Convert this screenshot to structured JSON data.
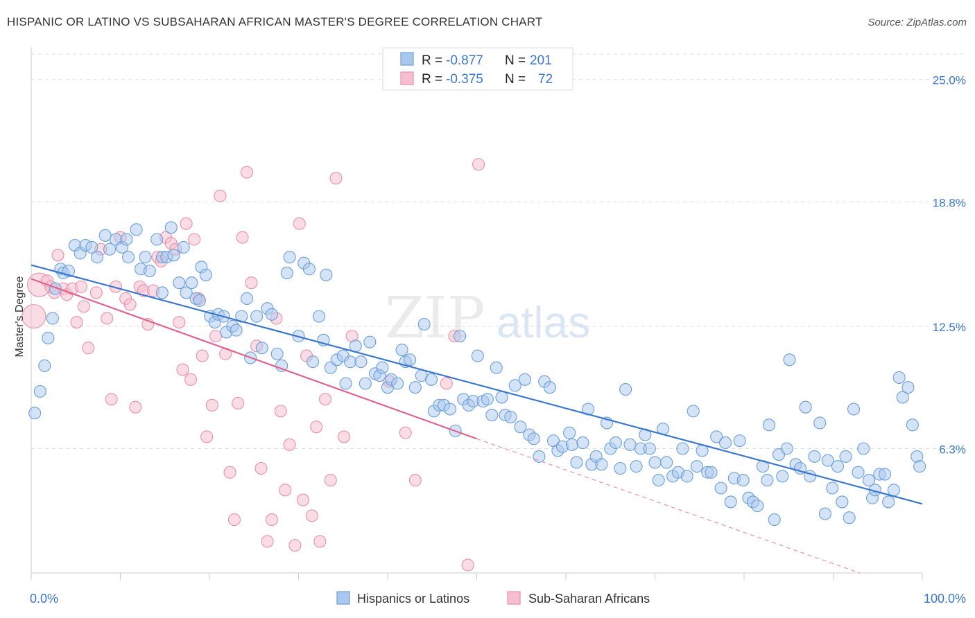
{
  "header": {
    "title": "HISPANIC OR LATINO VS SUBSAHARAN AFRICAN MASTER'S DEGREE CORRELATION CHART",
    "source": "Source: ZipAtlas.com"
  },
  "colors": {
    "blue": "#6a9fd8",
    "blue_fill": "#a9c8ee",
    "blue_line": "#3a78d0",
    "pink": "#e890ab",
    "pink_fill": "#f5bfd0",
    "pink_line": "#e0648f",
    "tick_label": "#3a78d0",
    "grid": "#dddddd"
  },
  "legend_top": {
    "rows": [
      {
        "r_label": "R =",
        "r_value": "-0.877",
        "n_label": "N =",
        "n_value": "201"
      },
      {
        "r_label": "R =",
        "r_value": "-0.375",
        "n_label": "N =",
        "n_value": "72"
      }
    ]
  },
  "watermark": {
    "zip": "ZIP",
    "atlas": "atlas"
  },
  "chart_data": {
    "type": "scatter",
    "title": "HISPANIC OR LATINO VS SUBSAHARAN AFRICAN MASTER'S DEGREE CORRELATION CHART",
    "xlabel": "",
    "ylabel": "Master's Degree",
    "xlim": [
      0,
      100
    ],
    "ylim": [
      0,
      26.5
    ],
    "x_tick_labels": [
      "0.0%",
      "100.0%"
    ],
    "y_ticks": [
      6.3,
      12.5,
      18.8,
      25.0
    ],
    "y_tick_labels": [
      "6.3%",
      "12.5%",
      "18.8%",
      "25.0%"
    ],
    "grid": true,
    "legend_position": "bottom",
    "series": [
      {
        "name": "Hispanics or Latinos",
        "r": -0.877,
        "n": 201,
        "trend": {
          "x0": 0,
          "y0": 15.6,
          "x1": 100,
          "y1": 3.5
        },
        "points": [
          [
            0.4,
            8.1
          ],
          [
            1.0,
            9.2
          ],
          [
            1.5,
            10.5
          ],
          [
            1.9,
            11.9
          ],
          [
            2.4,
            12.9
          ],
          [
            2.7,
            14.4
          ],
          [
            3.3,
            15.4
          ],
          [
            3.6,
            15.2
          ],
          [
            4.2,
            15.3
          ],
          [
            4.9,
            16.6
          ],
          [
            5.5,
            16.2
          ],
          [
            6.1,
            16.6
          ],
          [
            6.8,
            16.5
          ],
          [
            7.4,
            16.0
          ],
          [
            8.3,
            17.1
          ],
          [
            8.8,
            16.4
          ],
          [
            9.5,
            16.9
          ],
          [
            10.2,
            16.5
          ],
          [
            10.7,
            16.9
          ],
          [
            10.9,
            16.0
          ],
          [
            11.8,
            17.4
          ],
          [
            12.3,
            15.4
          ],
          [
            12.8,
            16.0
          ],
          [
            13.3,
            15.3
          ],
          [
            14.1,
            16.9
          ],
          [
            14.7,
            16.0
          ],
          [
            14.7,
            14.2
          ],
          [
            15.2,
            16.0
          ],
          [
            15.7,
            17.5
          ],
          [
            16.0,
            16.1
          ],
          [
            16.6,
            14.7
          ],
          [
            17.1,
            16.5
          ],
          [
            17.4,
            14.2
          ],
          [
            18.0,
            14.7
          ],
          [
            18.5,
            13.9
          ],
          [
            18.9,
            13.8
          ],
          [
            19.1,
            15.5
          ],
          [
            19.6,
            15.1
          ],
          [
            20.1,
            13.0
          ],
          [
            20.6,
            12.7
          ],
          [
            21.0,
            13.1
          ],
          [
            21.6,
            13.0
          ],
          [
            21.9,
            12.2
          ],
          [
            22.6,
            12.5
          ],
          [
            23.0,
            12.3
          ],
          [
            23.6,
            13.0
          ],
          [
            24.2,
            13.9
          ],
          [
            24.6,
            10.9
          ],
          [
            25.3,
            13.0
          ],
          [
            25.9,
            11.4
          ],
          [
            26.5,
            13.4
          ],
          [
            27.0,
            13.1
          ],
          [
            27.6,
            11.1
          ],
          [
            28.1,
            10.5
          ],
          [
            28.7,
            15.2
          ],
          [
            29.0,
            16.0
          ],
          [
            30.0,
            12.0
          ],
          [
            30.6,
            15.7
          ],
          [
            31.2,
            15.4
          ],
          [
            31.6,
            10.7
          ],
          [
            32.3,
            13.0
          ],
          [
            32.8,
            11.8
          ],
          [
            33.1,
            15.1
          ],
          [
            33.6,
            10.4
          ],
          [
            34.3,
            10.8
          ],
          [
            35.0,
            11.0
          ],
          [
            35.3,
            9.6
          ],
          [
            35.8,
            10.7
          ],
          [
            36.4,
            11.5
          ],
          [
            37.0,
            10.7
          ],
          [
            37.5,
            9.6
          ],
          [
            38.0,
            11.7
          ],
          [
            38.6,
            10.1
          ],
          [
            39.1,
            10.0
          ],
          [
            39.4,
            10.4
          ],
          [
            40.0,
            9.4
          ],
          [
            40.4,
            9.8
          ],
          [
            41.1,
            9.6
          ],
          [
            41.6,
            11.3
          ],
          [
            42.0,
            10.7
          ],
          [
            42.5,
            10.8
          ],
          [
            43.1,
            9.4
          ],
          [
            43.8,
            10.0
          ],
          [
            44.1,
            12.6
          ],
          [
            44.9,
            9.8
          ],
          [
            45.2,
            8.2
          ],
          [
            45.8,
            8.5
          ],
          [
            46.3,
            8.5
          ],
          [
            47.0,
            8.3
          ],
          [
            47.6,
            7.2
          ],
          [
            48.1,
            12.0
          ],
          [
            48.5,
            8.8
          ],
          [
            49.1,
            8.5
          ],
          [
            49.6,
            8.7
          ],
          [
            50.1,
            11.0
          ],
          [
            50.7,
            8.7
          ],
          [
            51.2,
            8.8
          ],
          [
            51.7,
            8.0
          ],
          [
            52.2,
            10.4
          ],
          [
            52.8,
            8.9
          ],
          [
            53.2,
            8.0
          ],
          [
            53.8,
            7.9
          ],
          [
            54.3,
            9.5
          ],
          [
            54.9,
            7.4
          ],
          [
            55.4,
            9.8
          ],
          [
            55.9,
            7.0
          ],
          [
            56.4,
            6.8
          ],
          [
            57.0,
            5.9
          ],
          [
            57.6,
            9.7
          ],
          [
            58.2,
            9.4
          ],
          [
            58.6,
            6.7
          ],
          [
            59.1,
            6.2
          ],
          [
            59.6,
            6.4
          ],
          [
            60.4,
            7.1
          ],
          [
            60.7,
            6.5
          ],
          [
            61.2,
            5.6
          ],
          [
            61.9,
            6.6
          ],
          [
            62.5,
            8.3
          ],
          [
            62.9,
            5.5
          ],
          [
            63.4,
            5.9
          ],
          [
            64.0,
            5.5
          ],
          [
            64.6,
            7.6
          ],
          [
            65.0,
            6.3
          ],
          [
            65.6,
            6.6
          ],
          [
            66.1,
            5.3
          ],
          [
            66.7,
            9.3
          ],
          [
            67.2,
            6.5
          ],
          [
            67.9,
            5.4
          ],
          [
            68.4,
            6.3
          ],
          [
            68.9,
            7.0
          ],
          [
            69.4,
            6.3
          ],
          [
            70.0,
            5.6
          ],
          [
            70.4,
            4.7
          ],
          [
            70.9,
            7.3
          ],
          [
            71.3,
            5.6
          ],
          [
            72.0,
            4.9
          ],
          [
            72.6,
            5.1
          ],
          [
            73.1,
            6.3
          ],
          [
            73.6,
            4.9
          ],
          [
            74.3,
            8.2
          ],
          [
            74.7,
            5.4
          ],
          [
            75.3,
            6.2
          ],
          [
            75.9,
            5.1
          ],
          [
            76.3,
            5.1
          ],
          [
            76.9,
            6.9
          ],
          [
            77.4,
            4.3
          ],
          [
            77.9,
            6.6
          ],
          [
            78.5,
            3.6
          ],
          [
            78.9,
            4.8
          ],
          [
            79.5,
            6.7
          ],
          [
            79.9,
            4.7
          ],
          [
            80.5,
            3.8
          ],
          [
            81.0,
            3.6
          ],
          [
            81.5,
            3.4
          ],
          [
            82.1,
            5.4
          ],
          [
            82.6,
            4.7
          ],
          [
            82.8,
            7.5
          ],
          [
            83.4,
            2.7
          ],
          [
            83.9,
            6.0
          ],
          [
            84.3,
            4.9
          ],
          [
            84.8,
            6.3
          ],
          [
            85.1,
            10.8
          ],
          [
            85.8,
            5.5
          ],
          [
            86.3,
            5.3
          ],
          [
            86.9,
            8.4
          ],
          [
            87.4,
            4.9
          ],
          [
            87.9,
            5.9
          ],
          [
            88.5,
            7.6
          ],
          [
            89.1,
            3.0
          ],
          [
            89.4,
            5.7
          ],
          [
            89.9,
            4.3
          ],
          [
            90.5,
            5.4
          ],
          [
            91.0,
            3.6
          ],
          [
            91.4,
            5.9
          ],
          [
            91.8,
            2.8
          ],
          [
            92.3,
            8.3
          ],
          [
            92.8,
            5.1
          ],
          [
            93.4,
            6.3
          ],
          [
            94.0,
            4.7
          ],
          [
            94.4,
            3.8
          ],
          [
            94.7,
            4.2
          ],
          [
            95.2,
            5.0
          ],
          [
            95.8,
            5.0
          ],
          [
            96.2,
            3.6
          ],
          [
            96.8,
            4.2
          ],
          [
            97.4,
            9.9
          ],
          [
            97.8,
            8.9
          ],
          [
            98.4,
            9.4
          ],
          [
            98.9,
            7.5
          ],
          [
            99.4,
            5.9
          ],
          [
            99.7,
            5.4
          ]
        ]
      },
      {
        "name": "Sub-Saharan Africans",
        "r": -0.375,
        "n": 72,
        "trend": {
          "x0": 0,
          "y0": 14.9,
          "x1": 50,
          "y1": 6.8
        },
        "trend_dashed": {
          "x0": 50,
          "y0": 6.8,
          "x1": 93,
          "y1": 0.0
        },
        "points": [
          [
            0.3,
            13.0,
            "L"
          ],
          [
            0.9,
            14.6,
            "L"
          ],
          [
            1.8,
            14.8
          ],
          [
            2.2,
            14.5
          ],
          [
            2.6,
            14.2
          ],
          [
            3.0,
            16.1
          ],
          [
            3.6,
            14.4
          ],
          [
            4.0,
            14.1
          ],
          [
            4.6,
            14.4
          ],
          [
            5.1,
            12.7
          ],
          [
            5.6,
            14.5
          ],
          [
            5.9,
            13.5
          ],
          [
            6.4,
            11.4
          ],
          [
            7.3,
            14.2
          ],
          [
            7.8,
            16.4
          ],
          [
            8.5,
            12.9
          ],
          [
            9.0,
            8.8
          ],
          [
            9.5,
            14.5
          ],
          [
            10.0,
            17.0
          ],
          [
            10.6,
            13.9
          ],
          [
            11.1,
            13.6
          ],
          [
            11.7,
            8.4
          ],
          [
            12.2,
            14.5
          ],
          [
            12.6,
            14.3
          ],
          [
            13.1,
            12.6
          ],
          [
            13.7,
            14.3
          ],
          [
            14.2,
            16.0
          ],
          [
            14.6,
            15.8
          ],
          [
            15.1,
            17.0
          ],
          [
            15.7,
            16.7
          ],
          [
            16.2,
            16.4
          ],
          [
            16.6,
            12.7
          ],
          [
            17.0,
            10.3
          ],
          [
            17.4,
            17.7
          ],
          [
            17.9,
            9.8
          ],
          [
            18.3,
            16.9
          ],
          [
            18.8,
            13.9
          ],
          [
            19.2,
            11.0
          ],
          [
            19.7,
            6.9
          ],
          [
            20.3,
            8.5
          ],
          [
            20.7,
            12.0
          ],
          [
            21.2,
            19.1
          ],
          [
            21.8,
            11.1
          ],
          [
            22.3,
            5.1
          ],
          [
            22.8,
            2.7
          ],
          [
            23.2,
            8.6
          ],
          [
            23.7,
            17.0
          ],
          [
            24.2,
            20.3
          ],
          [
            24.7,
            14.7
          ],
          [
            25.3,
            11.5
          ],
          [
            25.8,
            5.3
          ],
          [
            26.5,
            1.6
          ],
          [
            27.0,
            2.7
          ],
          [
            27.5,
            12.9
          ],
          [
            28.0,
            8.2
          ],
          [
            28.5,
            4.2
          ],
          [
            29.0,
            6.5
          ],
          [
            29.6,
            1.4
          ],
          [
            30.1,
            17.7
          ],
          [
            30.5,
            3.7
          ],
          [
            30.9,
            11.0
          ],
          [
            31.5,
            2.9
          ],
          [
            32.0,
            7.4
          ],
          [
            32.4,
            1.6
          ],
          [
            33.0,
            8.8
          ],
          [
            33.6,
            4.7
          ],
          [
            34.2,
            20.0
          ],
          [
            35.1,
            6.9
          ],
          [
            36.0,
            12.0
          ],
          [
            40.2,
            9.7
          ],
          [
            42.0,
            7.1
          ],
          [
            43.1,
            4.7
          ],
          [
            46.6,
            9.6
          ],
          [
            47.5,
            12.0
          ],
          [
            49.0,
            0.4
          ],
          [
            50.2,
            20.7
          ]
        ]
      }
    ]
  },
  "legend_bottom": {
    "items": [
      {
        "label": "Hispanics or Latinos"
      },
      {
        "label": "Sub-Saharan Africans"
      }
    ]
  }
}
